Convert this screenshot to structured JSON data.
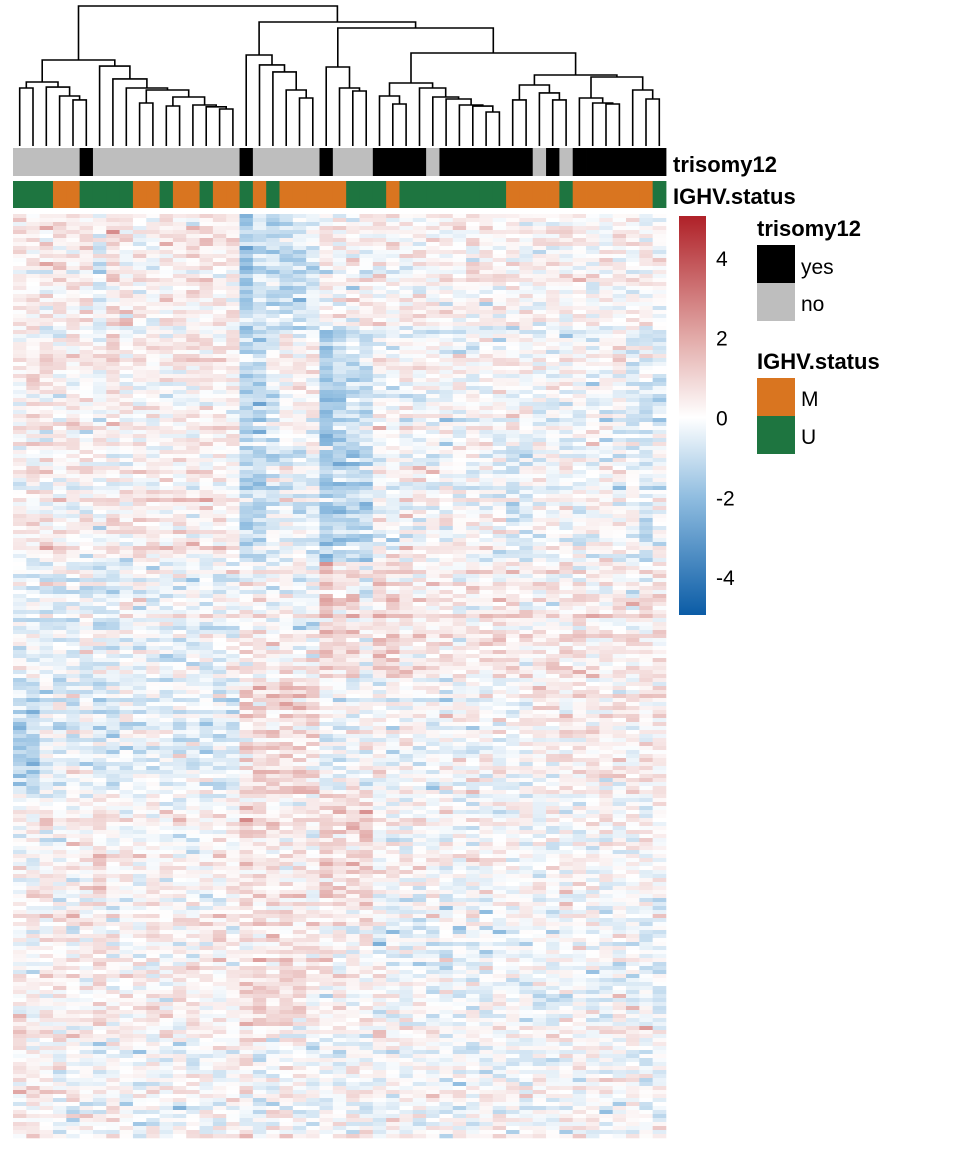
{
  "chart_data": {
    "type": "heatmap",
    "title": "",
    "n_columns": 49,
    "annotations": {
      "trisomy12": {
        "label": "trisomy12",
        "values": [
          "no",
          "no",
          "no",
          "no",
          "no",
          "yes",
          "no",
          "no",
          "no",
          "no",
          "no",
          "no",
          "no",
          "no",
          "no",
          "no",
          "no",
          "yes",
          "no",
          "no",
          "no",
          "no",
          "no",
          "yes",
          "no",
          "no",
          "no",
          "yes",
          "yes",
          "yes",
          "yes",
          "no",
          "yes",
          "yes",
          "yes",
          "yes",
          "yes",
          "yes",
          "yes",
          "no",
          "yes",
          "no",
          "yes",
          "yes",
          "yes",
          "yes",
          "yes",
          "yes",
          "yes"
        ],
        "colors": {
          "yes": "#000000",
          "no": "#bebebe"
        }
      },
      "IGHV_status": {
        "label": "IGHV.status",
        "values": [
          "U",
          "U",
          "U",
          "M",
          "M",
          "U",
          "U",
          "U",
          "U",
          "M",
          "M",
          "U",
          "M",
          "M",
          "U",
          "M",
          "M",
          "U",
          "M",
          "U",
          "M",
          "M",
          "M",
          "M",
          "M",
          "U",
          "U",
          "U",
          "M",
          "U",
          "U",
          "U",
          "U",
          "U",
          "U",
          "U",
          "U",
          "M",
          "M",
          "M",
          "M",
          "U",
          "M",
          "M",
          "M",
          "M",
          "M",
          "M",
          "U"
        ],
        "colors": {
          "M": "#d97520",
          "U": "#1e7540"
        }
      }
    },
    "legend": {
      "placement": "right",
      "groups": [
        {
          "title": "trisomy12",
          "items": [
            {
              "label": "yes",
              "color": "#000000"
            },
            {
              "label": "no",
              "color": "#bebebe"
            }
          ]
        },
        {
          "title": "IGHV.status",
          "items": [
            {
              "label": "M",
              "color": "#d97520"
            },
            {
              "label": "U",
              "color": "#1e7540"
            }
          ]
        }
      ]
    },
    "colorbar": {
      "range": [
        -4.95,
        5.05
      ],
      "ticks": [
        "4",
        "2",
        "0",
        "-2",
        "-4"
      ],
      "tick_values": [
        4,
        2,
        0,
        -2,
        -4
      ],
      "stops": [
        {
          "value": -5,
          "color": "#0b5ca6"
        },
        {
          "value": -2,
          "color": "#90bde0"
        },
        {
          "value": 0,
          "color": "#ffffff"
        },
        {
          "value": 2,
          "color": "#e2aaa8"
        },
        {
          "value": 5,
          "color": "#b0232a"
        }
      ]
    },
    "row_blocks_note": "approximate per-column mean z-score in 8 consecutive row blocks (top to bottom)",
    "block_means": [
      [
        0.4,
        0.3,
        0.3,
        0.4,
        0.3,
        0.3,
        -0.6,
        0.8,
        0.3,
        0.3,
        0.3,
        0.3,
        0.3,
        0.3,
        0.3,
        0.3,
        0.3,
        -1.5,
        -0.8,
        -1,
        -1,
        -1,
        -0.6,
        0.3,
        0.1,
        0.1,
        0.1,
        0.1,
        0.1,
        0.1,
        0.3,
        0.1,
        0.1,
        0.1,
        0.1,
        0.1,
        0.1,
        0.1,
        0.1,
        0.1,
        0.1,
        0.1,
        0.1,
        0.1,
        0.1,
        0.1,
        0.1,
        0.1,
        0.1
      ],
      [
        0.3,
        0.3,
        0.3,
        0.3,
        0.3,
        0.3,
        0.3,
        0.7,
        0.3,
        0.3,
        0.3,
        0.3,
        0.3,
        0.3,
        0.3,
        0.3,
        0.3,
        -1.2,
        -1,
        -0.6,
        0.2,
        0.3,
        0.3,
        -1.8,
        -1.2,
        -0.8,
        -0.8,
        0,
        0,
        0,
        0,
        0,
        0,
        0,
        0,
        0,
        0,
        0,
        0,
        0,
        0,
        0,
        0,
        0,
        0,
        0,
        -0.6,
        -0.6,
        -0.6
      ],
      [
        0.3,
        0.3,
        0.3,
        0.3,
        0.3,
        0.3,
        0.3,
        0.3,
        0.3,
        0.3,
        0.3,
        0.3,
        0.3,
        0.3,
        0.3,
        0.3,
        0.3,
        -1,
        -1,
        -0.6,
        -0.3,
        -0.3,
        -0.3,
        -1.5,
        -1.2,
        -1.2,
        -1,
        0,
        0,
        0,
        0,
        0,
        0,
        0,
        0,
        0,
        0,
        -0.5,
        -0.5,
        0,
        0,
        0,
        0,
        0,
        0,
        0,
        0,
        -0.8,
        0
      ],
      [
        -0.3,
        -0.3,
        -0.3,
        -0.3,
        -0.3,
        -0.3,
        -0.6,
        -0.6,
        -0.3,
        -0.3,
        -0.3,
        -0.3,
        -0.3,
        -0.3,
        -0.3,
        -0.3,
        -0.3,
        0.2,
        0.4,
        0,
        0,
        0,
        0,
        1.2,
        0.5,
        0.8,
        -0.3,
        1.0,
        0.8,
        0.4,
        0.4,
        0.4,
        0.4,
        0.4,
        0.4,
        0.4,
        0.4,
        0.4,
        0.4,
        0.4,
        0.4,
        0.4,
        0.4,
        0.4,
        0.4,
        0.4,
        0.4,
        0.4,
        0.4
      ],
      [
        -1.2,
        -1.2,
        -0.4,
        -0.4,
        -0.4,
        -0.4,
        -0.8,
        -0.8,
        -0.4,
        -0.4,
        -0.4,
        -0.4,
        -0.4,
        -0.4,
        -0.4,
        -0.4,
        -0.4,
        0.8,
        0.8,
        0.8,
        0.8,
        0.8,
        0.8,
        -0.6,
        -0.5,
        0,
        0,
        -0.1,
        -0.1,
        -0.1,
        -0.1,
        -0.1,
        -0.1,
        -0.1,
        -0.1,
        -0.1,
        -0.1,
        -0.1,
        -0.1,
        0.3,
        0.3,
        0.3,
        0.3,
        0.3,
        0.3,
        0.3,
        0.3,
        0.3,
        0.3
      ],
      [
        0,
        0,
        0,
        0,
        0,
        0,
        0.6,
        0,
        0,
        0,
        0,
        0,
        0,
        0,
        0,
        0,
        0,
        0.7,
        0.5,
        0.2,
        0.2,
        0.2,
        0.2,
        0.7,
        0.7,
        0.7,
        0.7,
        -0.1,
        -0.1,
        -0.1,
        -0.1,
        -0.1,
        -0.1,
        -0.1,
        -0.1,
        -0.1,
        -0.1,
        -0.1,
        -0.1,
        -0.1,
        -0.1,
        -0.1,
        -0.1,
        -0.1,
        -0.1,
        -0.1,
        -0.1,
        -0.1,
        -0.1
      ],
      [
        0.2,
        0.2,
        0.2,
        0.2,
        0.2,
        0.2,
        0.6,
        0.2,
        0.2,
        0.2,
        0.2,
        0.2,
        0.2,
        0.2,
        0.2,
        0.2,
        0.2,
        0.7,
        0.7,
        0.7,
        0.7,
        0.7,
        0.3,
        0.2,
        0.2,
        0.2,
        0.2,
        -0.3,
        -0.3,
        -0.3,
        -0.3,
        -0.3,
        -0.3,
        -0.3,
        -0.3,
        -0.3,
        -0.3,
        -0.3,
        -0.3,
        -0.3,
        -0.3,
        -0.3,
        -0.3,
        -0.3,
        -0.3,
        -0.3,
        -0.3,
        -0.3,
        -0.3
      ],
      [
        0.4,
        0.4,
        0.4,
        0,
        0,
        0,
        -0.3,
        0,
        0,
        0,
        0,
        0,
        0,
        0,
        0,
        0,
        0,
        0.3,
        -0.4,
        0,
        0,
        0,
        0,
        0,
        0,
        0,
        0,
        0,
        0,
        0,
        0,
        0,
        0,
        0,
        0,
        0,
        0,
        0,
        0,
        0,
        0,
        0,
        0,
        0,
        0,
        0,
        0,
        0,
        0
      ]
    ],
    "dendrogram": {
      "h": 10.0,
      "c": [
        {
          "h": 6.14,
          "c": [
            {
              "h": 4.57,
              "c": [
                {
                  "h": 4.14,
                  "c": [
                    0,
                    1
                  ]
                },
                {
                  "h": 4.21,
                  "c": [
                    2,
                    {
                      "h": 3.57,
                      "c": [
                        3,
                        {
                          "h": 3.29,
                          "c": [
                            4,
                            5
                          ]
                        }
                      ]
                    }
                  ]
                }
              ]
            },
            {
              "h": 5.71,
              "c": [
                6,
                {
                  "h": 4.79,
                  "c": [
                    7,
                    {
                      "h": 4.14,
                      "c": [
                        8,
                        {
                          "h": 4.0,
                          "c": [
                            {
                              "h": 3.07,
                              "c": [
                                9,
                                10
                              ]
                            },
                            {
                              "h": 3.5,
                              "c": [
                                {
                                  "h": 2.86,
                                  "c": [
                                    11,
                                    12
                                  ]
                                },
                                {
                                  "h": 2.93,
                                  "c": [
                                    13,
                                    {
                                      "h": 2.8,
                                      "c": [
                                        14,
                                        {
                                          "h": 2.64,
                                          "c": [
                                            15,
                                            16
                                          ]
                                        }
                                      ]
                                    }
                                  ]
                                }
                              ]
                            }
                          ]
                        }
                      ]
                    }
                  ]
                }
              ]
            }
          ]
        },
        {
          "h": 8.86,
          "c": [
            {
              "h": 6.5,
              "c": [
                17,
                {
                  "h": 5.79,
                  "c": [
                    18,
                    {
                      "h": 5.29,
                      "c": [
                        19,
                        {
                          "h": 4.0,
                          "c": [
                            20,
                            {
                              "h": 3.43,
                              "c": [
                                21,
                                22
                              ]
                            }
                          ]
                        }
                      ]
                    }
                  ]
                }
              ]
            },
            {
              "h": 8.43,
              "c": [
                {
                  "h": 5.64,
                  "c": [
                    23,
                    {
                      "h": 4.14,
                      "c": [
                        24,
                        {
                          "h": 3.93,
                          "c": [
                            25,
                            26
                          ]
                        }
                      ]
                    }
                  ]
                },
                {
                  "h": 6.64,
                  "c": [
                    {
                      "h": 4.5,
                      "c": [
                        {
                          "h": 3.57,
                          "c": [
                            27,
                            {
                              "h": 3.0,
                              "c": [
                                28,
                                29
                              ]
                            }
                          ]
                        },
                        {
                          "h": 4.14,
                          "c": [
                            30,
                            {
                              "h": 3.5,
                              "c": [
                                31,
                                {
                                  "h": 3.36,
                                  "c": [
                                    32,
                                    {
                                      "h": 2.93,
                                      "c": [
                                        33,
                                        {
                                          "h": 2.85,
                                          "c": [
                                            34,
                                            {
                                              "h": 2.43,
                                              "c": [
                                                35,
                                                36
                                              ]
                                            }
                                          ]
                                        }
                                      ]
                                    }
                                  ]
                                }
                              ]
                            }
                          ]
                        }
                      ]
                    },
                    {
                      "h": 5.07,
                      "c": [
                        {
                          "h": 4.36,
                          "c": [
                            {
                              "h": 3.29,
                              "c": [
                                37,
                                38
                              ]
                            },
                            {
                              "h": 3.79,
                              "c": [
                                39,
                                {
                                  "h": 3.29,
                                  "c": [
                                    40,
                                    41
                                  ]
                                }
                              ]
                            }
                          ]
                        },
                        {
                          "h": 4.93,
                          "c": [
                            {
                              "h": 3.43,
                              "c": [
                                42,
                                {
                                  "h": 3.07,
                                  "c": [
                                    43,
                                    {
                                      "h": 3.0,
                                      "c": [
                                        44,
                                        45
                                      ]
                                    }
                                  ]
                                }
                              ]
                            },
                            {
                              "h": 4.0,
                              "c": [
                                46,
                                {
                                  "h": 3.36,
                                  "c": [
                                    47,
                                    48
                                  ]
                                }
                              ]
                            }
                          ]
                        }
                      ]
                    }
                  ]
                }
              ]
            }
          ]
        }
      ]
    }
  }
}
